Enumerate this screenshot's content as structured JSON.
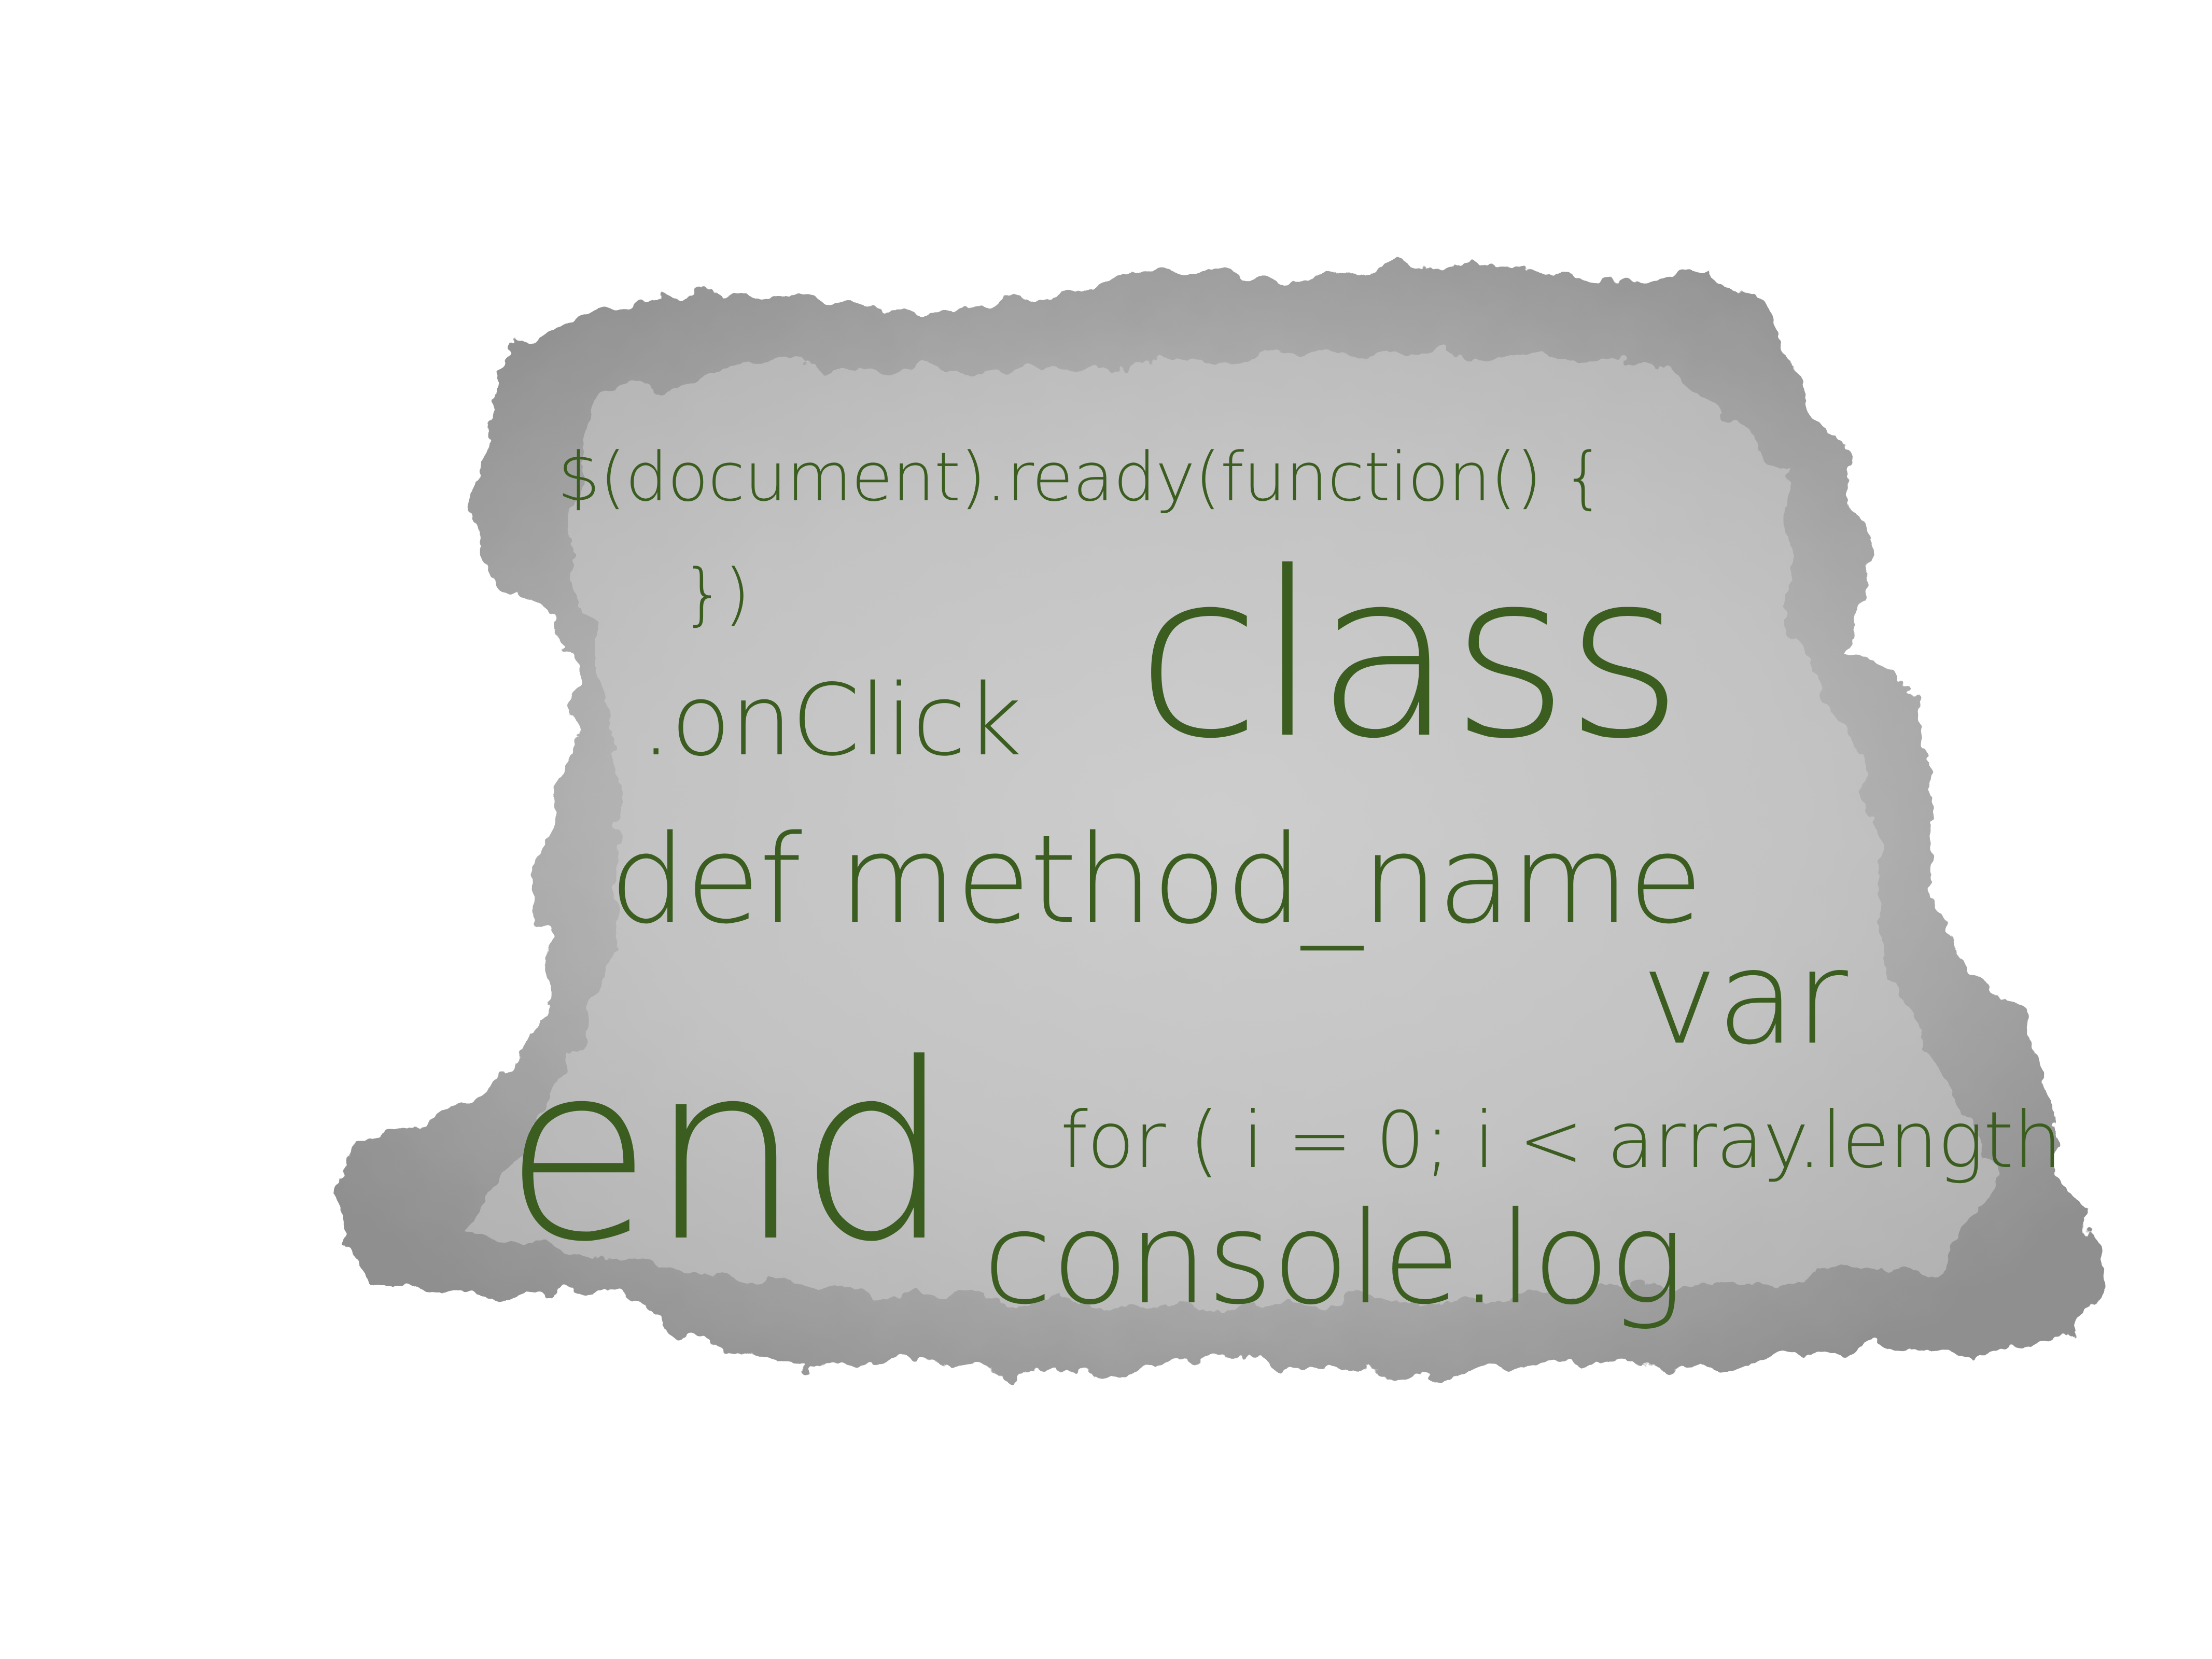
{
  "background": {
    "page_color": "#ffffff",
    "blob_color": "#8c8c8c",
    "blob_style": "grey watercolor wash"
  },
  "text_color": "#3b5e20",
  "words": {
    "ready": "$(document).ready(function() {",
    "close": "})",
    "onclick": ".onClick",
    "class": "class",
    "def": "def method_name",
    "var": "var",
    "end": "end",
    "for": "for ( i = 0; i < array.length",
    "console": "console.log"
  }
}
